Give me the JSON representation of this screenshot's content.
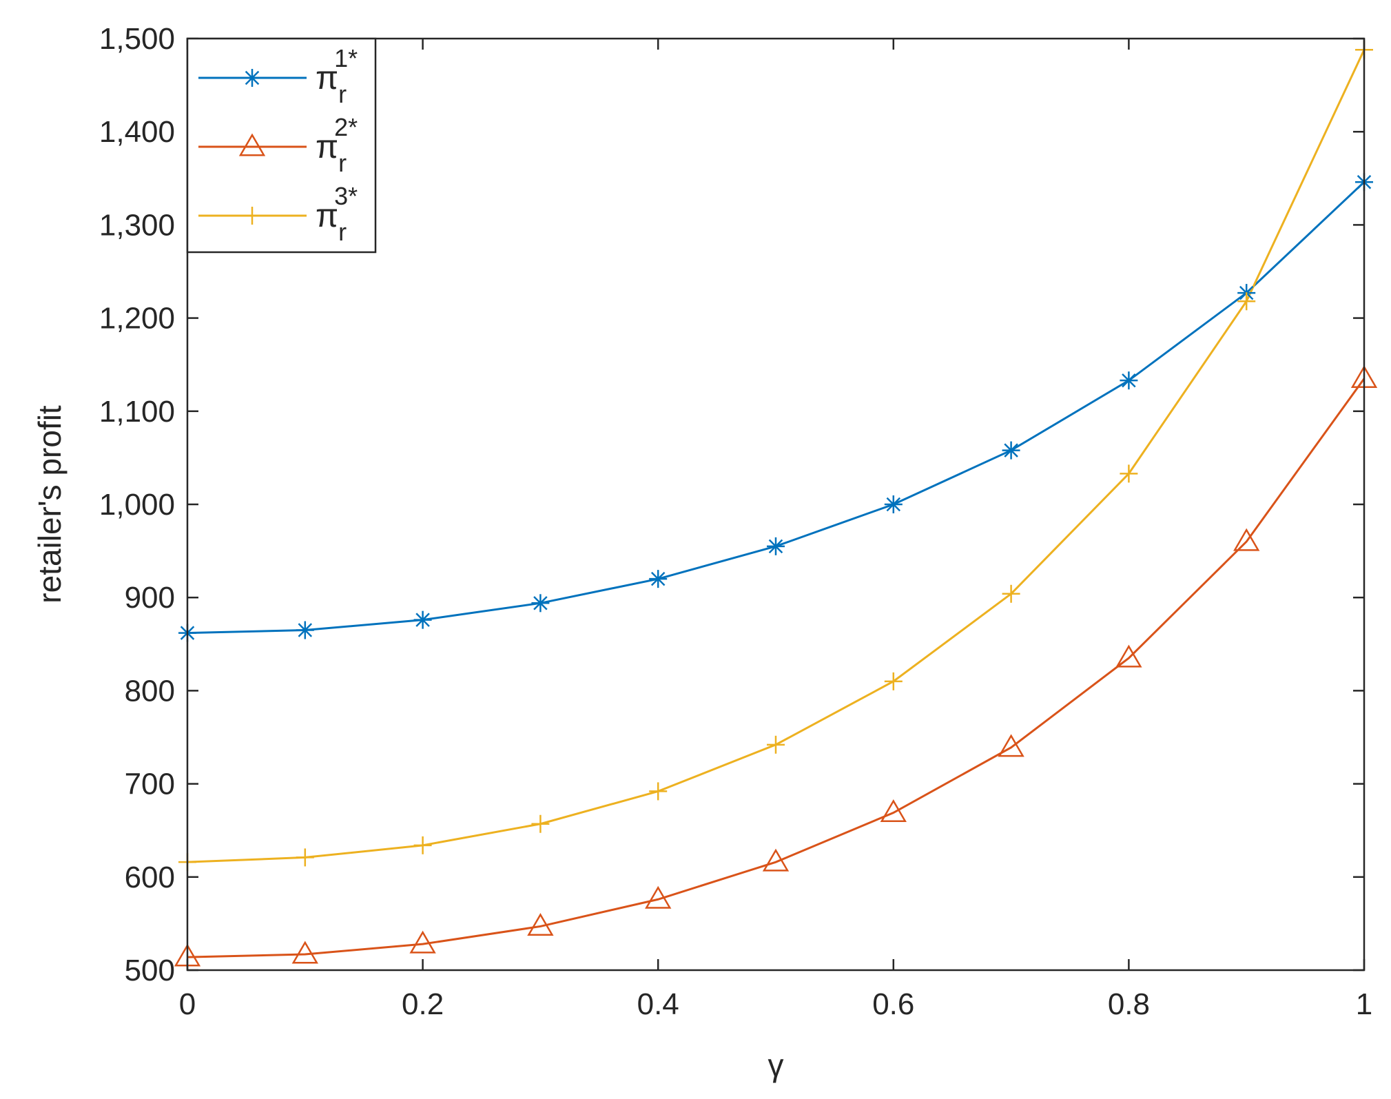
{
  "chart_data": {
    "type": "line",
    "xlabel": "γ",
    "ylabel": "retailer's profit",
    "xlim": [
      0,
      1
    ],
    "ylim": [
      500,
      1500
    ],
    "x_ticks": [
      "0",
      "0.2",
      "0.4",
      "0.6",
      "0.8",
      "1"
    ],
    "x_tick_values": [
      0,
      0.2,
      0.4,
      0.6,
      0.8,
      1
    ],
    "y_ticks": [
      "500",
      "600",
      "700",
      "800",
      "900",
      "1,000",
      "1,100",
      "1,200",
      "1,300",
      "1,400",
      "1,500"
    ],
    "y_tick_values": [
      500,
      600,
      700,
      800,
      900,
      1000,
      1100,
      1200,
      1300,
      1400,
      1500
    ],
    "grid": false,
    "legend_position": "top-left",
    "x": [
      0,
      0.1,
      0.2,
      0.3,
      0.4,
      0.5,
      0.6,
      0.7,
      0.8,
      0.9,
      1
    ],
    "series": [
      {
        "name": "π_r^1*",
        "base": "π",
        "sub": "r",
        "sup": "1*",
        "color": "#0072BD",
        "marker": "asterisk",
        "values": [
          862,
          865,
          876,
          894,
          920,
          955,
          1000,
          1058,
          1133,
          1227,
          1346
        ]
      },
      {
        "name": "π_r^2*",
        "base": "π",
        "sub": "r",
        "sup": "2*",
        "color": "#D95319",
        "marker": "triangle",
        "values": [
          514,
          517,
          528,
          547,
          576,
          616,
          669,
          739,
          835,
          960,
          1135
        ]
      },
      {
        "name": "π_r^3*",
        "base": "π",
        "sub": "r",
        "sup": "3*",
        "color": "#EDB120",
        "marker": "plus",
        "values": [
          616,
          621,
          634,
          657,
          692,
          742,
          810,
          904,
          1033,
          1218,
          1488
        ]
      }
    ]
  }
}
